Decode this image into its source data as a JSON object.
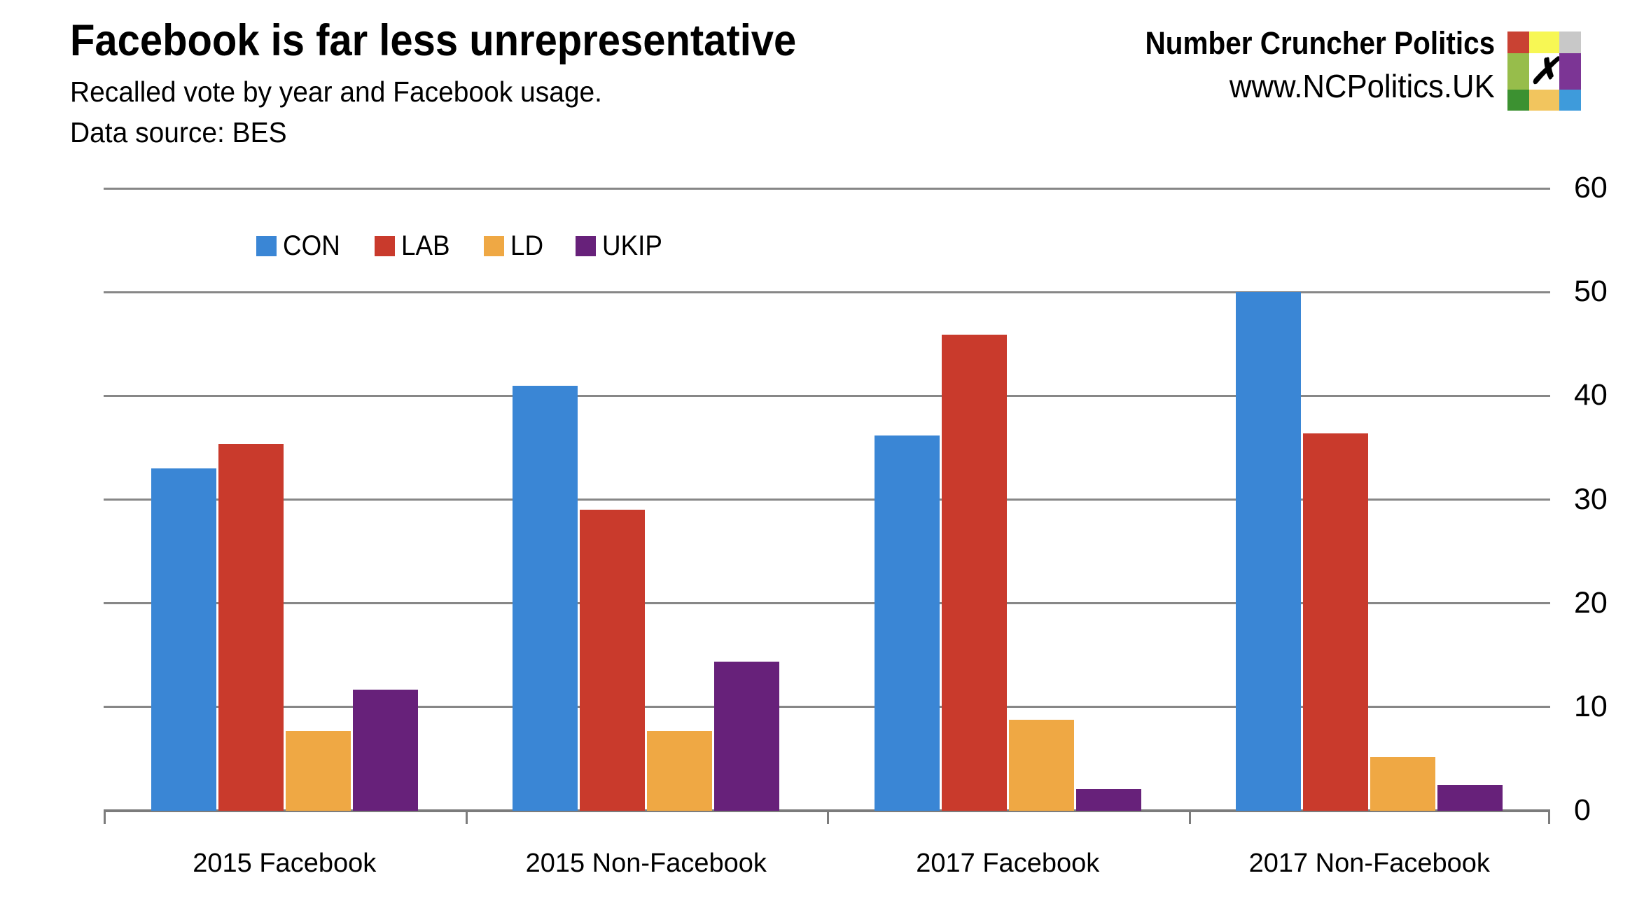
{
  "header": {
    "title": "Facebook is far less unrepresentative",
    "subtitle": "Recalled vote by year and Facebook usage.",
    "source_note": "Data source: BES"
  },
  "branding": {
    "name": "Number Cruncher Politics",
    "url": "www.NCPolitics.UK",
    "logo_mark": "✗",
    "logo_grid_colors": [
      [
        "#c94233",
        "#f7f754",
        "#c8c8c8"
      ],
      [
        "#97bd4b",
        "#ffffff",
        "#7c3595"
      ],
      [
        "#3c9131",
        "#f2c55e",
        "#3e9bdb"
      ]
    ]
  },
  "chart_data": {
    "type": "bar",
    "title": "Facebook is far less unrepresentative",
    "subtitle": "Recalled vote by year and Facebook usage.",
    "source_note": "Data source: BES",
    "categories": [
      "2015 Facebook",
      "2015 Non-Facebook",
      "2017 Facebook",
      "2017 Non-Facebook"
    ],
    "series": [
      {
        "name": "CON",
        "color": "#3a86d5",
        "values": [
          33,
          41,
          36.2,
          50
        ]
      },
      {
        "name": "LAB",
        "color": "#c93a2c",
        "values": [
          35.4,
          29,
          45.9,
          36.4
        ]
      },
      {
        "name": "LD",
        "color": "#efa844",
        "values": [
          7.7,
          7.7,
          8.8,
          5.2
        ]
      },
      {
        "name": "UKIP",
        "color": "#67217a",
        "values": [
          11.7,
          14.4,
          2.1,
          2.5
        ]
      }
    ],
    "ylim": [
      0,
      60
    ],
    "yticks": [
      0,
      10,
      20,
      30,
      40,
      50,
      60
    ],
    "ytick_side": "right",
    "grid": true,
    "legend_position": "inside-top-left",
    "gridline_color": "#878787",
    "axis_color": "#7c7c7c"
  }
}
